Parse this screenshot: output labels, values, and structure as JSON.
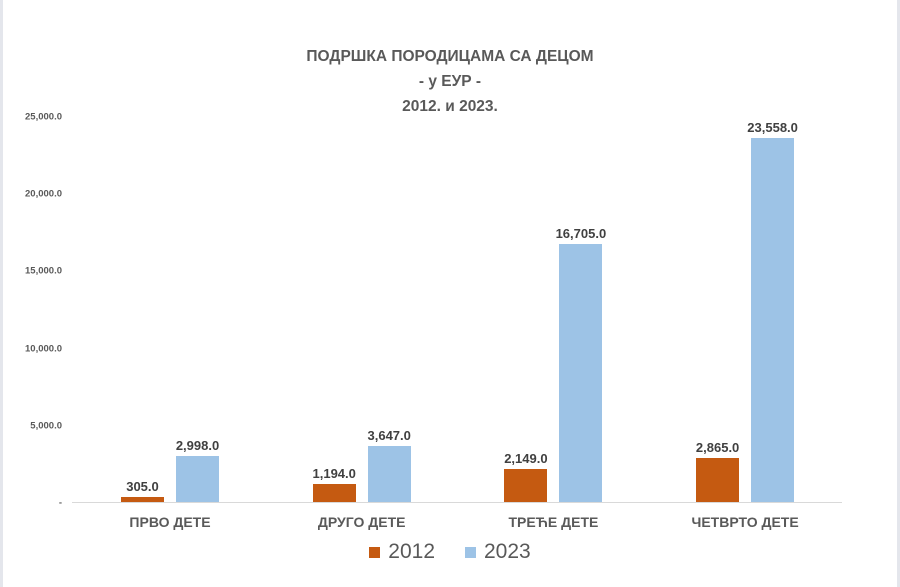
{
  "chart_data": {
    "type": "bar",
    "title": "ПОДРШКА ПОРОДИЦАМА СА ДЕЦОМ",
    "subtitle": "- у ЕУР -",
    "subtitle2": "2012. и 2023.",
    "categories": [
      "ПРВО ДЕТЕ",
      "ДРУГО ДЕТЕ",
      "ТРЕЋЕ ДЕТЕ",
      "ЧЕТВРТО ДЕТЕ"
    ],
    "series": [
      {
        "name": "2012",
        "color": "#c55a11",
        "values": [
          305.0,
          1194.0,
          2149.0,
          2865.0
        ],
        "labels": [
          "305.0",
          "1,194.0",
          "2,149.0",
          "2,865.0"
        ]
      },
      {
        "name": "2023",
        "color": "#9dc3e6",
        "values": [
          2998.0,
          3647.0,
          16705.0,
          23558.0
        ],
        "labels": [
          "2,998.0",
          "3,647.0",
          "16,705.0",
          "23,558.0"
        ]
      }
    ],
    "xlabel": "",
    "ylabel": "",
    "ylim": [
      0,
      25000
    ],
    "yticks": [
      "-",
      "5,000.0",
      "10,000.0",
      "15,000.0",
      "20,000.0",
      "25,000.0"
    ],
    "grid": false,
    "legend_position": "bottom"
  }
}
